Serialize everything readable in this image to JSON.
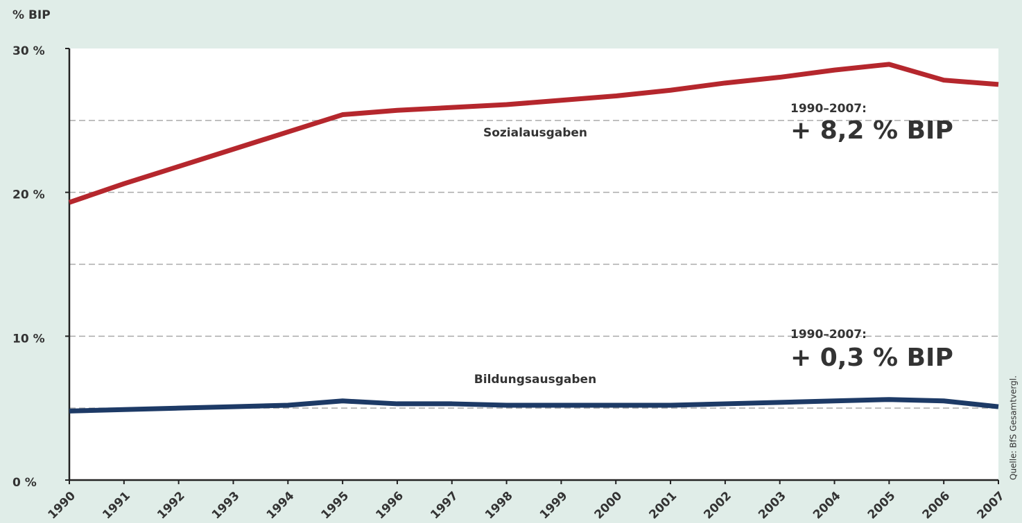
{
  "chart_data": {
    "type": "line",
    "y_axis_label": "% BIP",
    "x": [
      1990,
      1991,
      1992,
      1993,
      1994,
      1995,
      1996,
      1997,
      1998,
      1999,
      2000,
      2001,
      2002,
      2003,
      2004,
      2005,
      2006,
      2007
    ],
    "series": [
      {
        "name": "Sozialausgaben",
        "color": "#b5272d",
        "values": [
          19.3,
          20.6,
          21.8,
          23.0,
          24.2,
          25.4,
          25.7,
          25.9,
          26.1,
          26.4,
          26.7,
          27.1,
          27.6,
          28.0,
          28.5,
          28.9,
          27.8,
          27.5
        ]
      },
      {
        "name": "Bildungsausgaben",
        "color": "#1d3a66",
        "values": [
          4.8,
          4.9,
          5.0,
          5.1,
          5.2,
          5.5,
          5.3,
          5.3,
          5.2,
          5.2,
          5.2,
          5.2,
          5.3,
          5.4,
          5.5,
          5.6,
          5.5,
          5.1
        ]
      }
    ],
    "annotations": [
      {
        "period": "1990–2007:",
        "change": "+ 8,2 % BIP"
      },
      {
        "period": "1990–2007:",
        "change": "+ 0,3 % BIP"
      }
    ],
    "source": "Quelle: BfS Gesamtvergl.",
    "xlim": [
      1990,
      2007
    ],
    "ylim": [
      0,
      30
    ],
    "yticks": [
      {
        "value": 0,
        "label": "0 %"
      },
      {
        "value": 10,
        "label": "10 %"
      },
      {
        "value": 20,
        "label": "20 %"
      },
      {
        "value": 30,
        "label": "30 %"
      }
    ],
    "ygrid": [
      5,
      10,
      15,
      20,
      25
    ],
    "grid": true
  }
}
